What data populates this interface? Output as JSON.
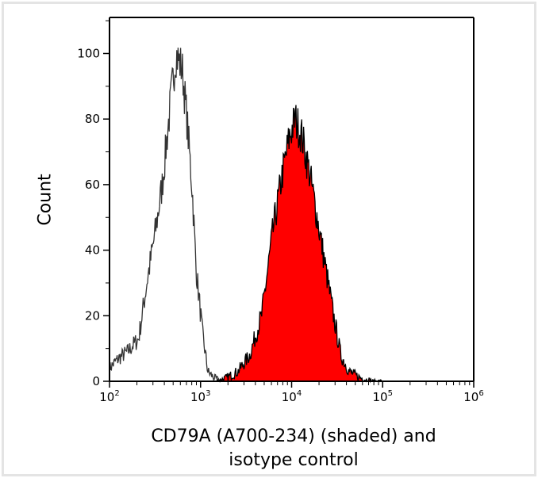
{
  "chart_data": {
    "type": "area",
    "xlabel_lines": [
      "CD79A (A700-234) (shaded) and",
      "isotype control"
    ],
    "ylabel": "Count",
    "x_scale": "log",
    "xlim": [
      100,
      1000000
    ],
    "ylim": [
      0,
      111
    ],
    "x_ticks": [
      {
        "base": "10",
        "exp": "2"
      },
      {
        "base": "10",
        "exp": "3"
      },
      {
        "base": "10",
        "exp": "4"
      },
      {
        "base": "10",
        "exp": "5"
      },
      {
        "base": "10",
        "exp": "6"
      }
    ],
    "y_ticks": [
      "0",
      "20",
      "40",
      "60",
      "80",
      "100"
    ],
    "grid": false,
    "series": [
      {
        "role": "isotype control",
        "style": "outline",
        "color": "#333333",
        "x": [
          100,
          126,
          158,
          209,
          257,
          316,
          380,
          468,
          537,
          631,
          708,
          813,
          891,
          1047,
          1202,
          1413,
          1700,
          2000
        ],
        "y": [
          4,
          7,
          9,
          13,
          30,
          45,
          60,
          85,
          100,
          95,
          80,
          58,
          35,
          15,
          3,
          1,
          0,
          0
        ]
      },
      {
        "role": "CD79A (A700-234)",
        "style": "shaded",
        "color": "#ff0000",
        "x": [
          1500,
          1905,
          2570,
          3467,
          4677,
          6166,
          7762,
          9550,
          10965,
          12883,
          15849,
          19055,
          23442,
          28840,
          34674,
          42658,
          57544,
          77625,
          100000
        ],
        "y": [
          0,
          1,
          3,
          8,
          20,
          45,
          62,
          75,
          80,
          75,
          63,
          50,
          35,
          20,
          8,
          3,
          1,
          0,
          0
        ]
      }
    ]
  }
}
